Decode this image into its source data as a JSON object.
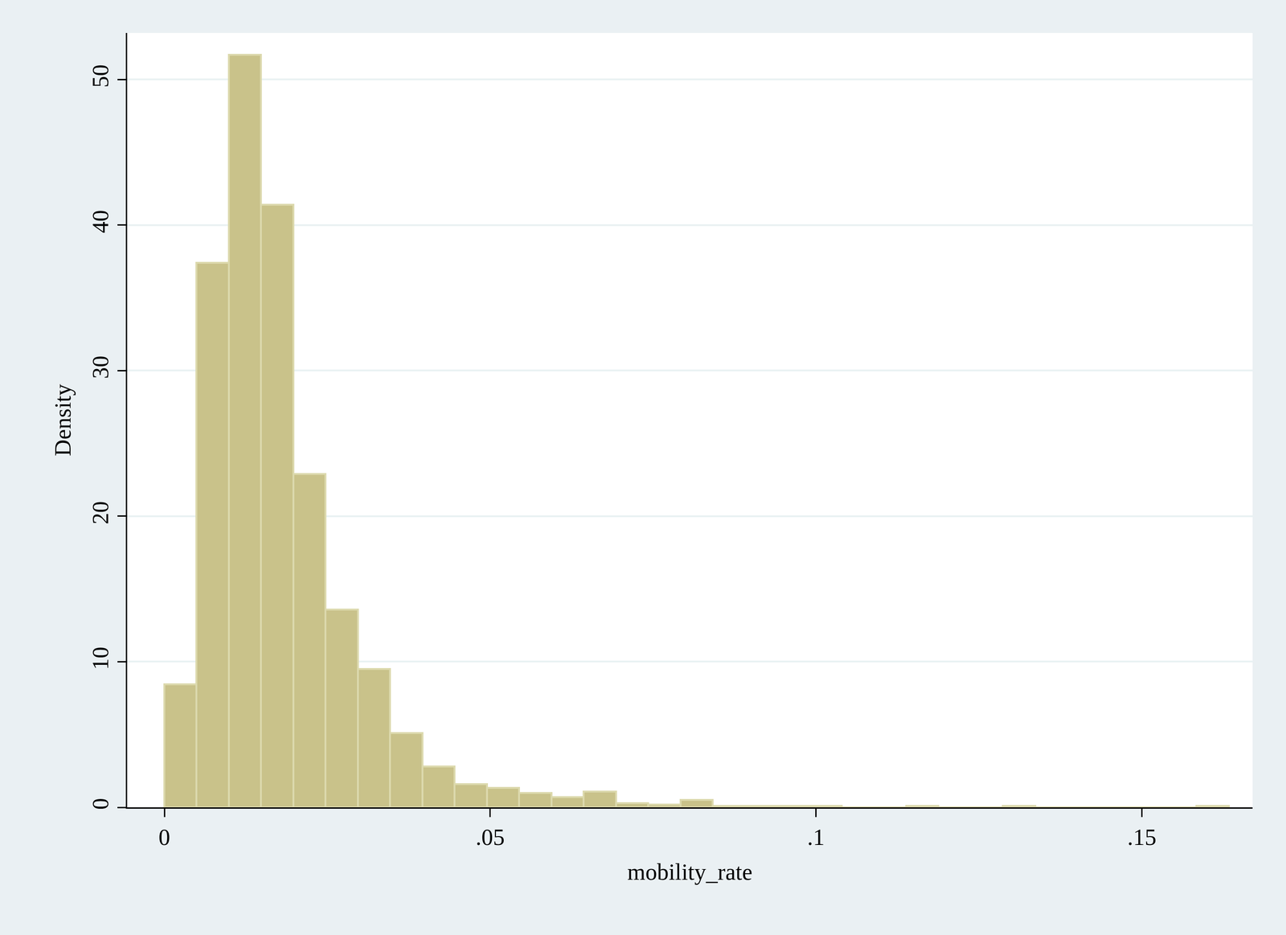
{
  "chart_data": {
    "type": "histogram",
    "x_label": "mobility_rate",
    "y_label": "Density",
    "bins": [
      0,
      0.00495,
      0.0099,
      0.01485,
      0.0198,
      0.02475,
      0.0297,
      0.03465,
      0.0396,
      0.04455,
      0.0495,
      0.05445,
      0.0594,
      0.06435,
      0.0693,
      0.07425,
      0.0792,
      0.08415,
      0.0891,
      0.09405,
      0.099,
      0.10395,
      0.1089,
      0.11385,
      0.1188,
      0.12375,
      0.1287,
      0.13365,
      0.1386,
      0.14355,
      0.1485,
      0.15345,
      0.1584,
      0.16335
    ],
    "values": [
      8.46,
      37.4,
      51.7,
      41.4,
      22.9,
      13.6,
      9.5,
      5.1,
      2.8,
      1.6,
      1.35,
      1.0,
      0.7,
      1.1,
      0.3,
      0.2,
      0.5,
      0.1,
      0.1,
      0.1,
      0.1,
      0,
      0,
      0.1,
      0,
      0,
      0.1,
      0,
      0,
      0,
      0,
      0,
      0.1
    ],
    "color": "#c9c28a",
    "xlim": [
      -0.0057,
      0.167
    ],
    "xticks": [
      0,
      {
        "value": 0.05,
        "label": ".05"
      },
      {
        "value": 0.1,
        "label": ".1"
      },
      {
        "value": 0.15,
        "label": ".15"
      }
    ],
    "ylim": [
      0,
      53.2
    ],
    "yticks": [
      0,
      10,
      20,
      30,
      40,
      50
    ],
    "grid": true
  }
}
